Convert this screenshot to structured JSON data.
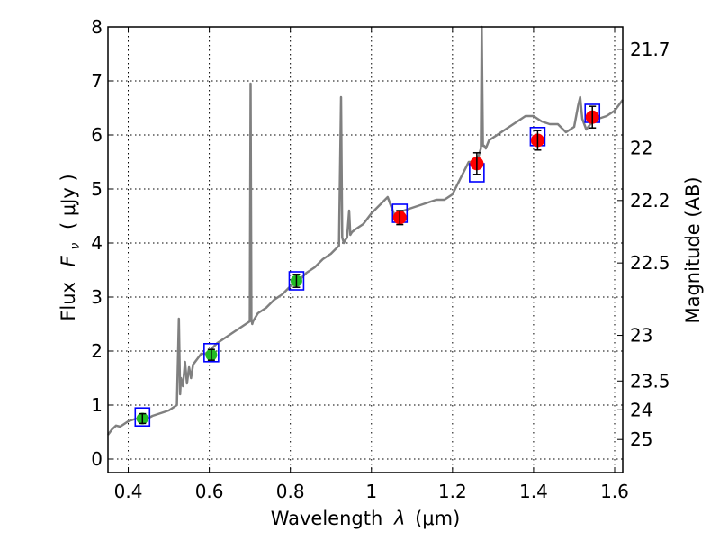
{
  "chart_data": {
    "type": "line+scatter",
    "xlabel_prefix": "Wavelength",
    "xlabel_symbol": "λ",
    "xlabel_unit": "(μm)",
    "ylabel_prefix": "Flux",
    "ylabel_symbol": "F",
    "ylabel_subscript": "ν",
    "ylabel_unit": "( μJy )",
    "y2label": "Magnitude (AB)",
    "xlim": [
      0.35,
      1.62
    ],
    "ylim": [
      -0.25,
      8.0
    ],
    "grid": true,
    "x_ticks": [
      0.4,
      0.6,
      0.8,
      1.0,
      1.2,
      1.4,
      1.6
    ],
    "x_tick_labels": [
      "0.4",
      "0.6",
      "0.8",
      "1",
      "1.2",
      "1.4",
      "1.6"
    ],
    "y_ticks": [
      0,
      1,
      2,
      3,
      4,
      5,
      6,
      7,
      8
    ],
    "y_tick_labels": [
      "0",
      "1",
      "2",
      "3",
      "4",
      "5",
      "6",
      "7",
      "8"
    ],
    "y2_ticks_mag": [
      21.7,
      22,
      22.2,
      22.5,
      23,
      23.5,
      24,
      25
    ],
    "y2_tick_labels": [
      "21.7",
      "22",
      "22.2",
      "22.5",
      "23",
      "23.5",
      "24",
      "25"
    ],
    "colors": {
      "spectrum": "#808080",
      "green_points": "#22bb22",
      "red_points": "#ff0000",
      "boxes": "#0000ff",
      "errorbars": "#000000"
    },
    "series": [
      {
        "name": "model spectrum",
        "kind": "line",
        "x": [
          0.35,
          0.36,
          0.37,
          0.38,
          0.39,
          0.4,
          0.42,
          0.44,
          0.46,
          0.48,
          0.5,
          0.52,
          0.525,
          0.528,
          0.53,
          0.535,
          0.54,
          0.545,
          0.55,
          0.555,
          0.56,
          0.57,
          0.58,
          0.59,
          0.6,
          0.62,
          0.64,
          0.66,
          0.68,
          0.7,
          0.702,
          0.704,
          0.706,
          0.708,
          0.72,
          0.74,
          0.76,
          0.78,
          0.8,
          0.82,
          0.84,
          0.86,
          0.88,
          0.9,
          0.92,
          0.925,
          0.928,
          0.932,
          0.935,
          0.94,
          0.945,
          0.948,
          0.952,
          0.96,
          0.98,
          1.0,
          1.02,
          1.04,
          1.06,
          1.08,
          1.1,
          1.12,
          1.14,
          1.16,
          1.18,
          1.2,
          1.22,
          1.24,
          1.26,
          1.27,
          1.272,
          1.275,
          1.278,
          1.282,
          1.29,
          1.3,
          1.32,
          1.34,
          1.36,
          1.38,
          1.4,
          1.42,
          1.44,
          1.46,
          1.48,
          1.5,
          1.51,
          1.515,
          1.52,
          1.53,
          1.54,
          1.56,
          1.58,
          1.6,
          1.62
        ],
        "y": [
          0.45,
          0.55,
          0.62,
          0.6,
          0.65,
          0.7,
          0.75,
          0.72,
          0.8,
          0.85,
          0.9,
          1.0,
          2.6,
          1.2,
          1.5,
          1.35,
          1.8,
          1.4,
          1.7,
          1.5,
          1.75,
          1.85,
          1.95,
          1.95,
          2.0,
          2.15,
          2.25,
          2.35,
          2.45,
          2.55,
          6.95,
          2.6,
          2.5,
          2.55,
          2.7,
          2.8,
          2.95,
          3.05,
          3.2,
          3.3,
          3.45,
          3.55,
          3.7,
          3.8,
          3.95,
          6.7,
          4.1,
          4.0,
          4.05,
          4.1,
          4.6,
          4.15,
          4.2,
          4.25,
          4.35,
          4.55,
          4.7,
          4.85,
          4.45,
          4.6,
          4.65,
          4.7,
          4.75,
          4.8,
          4.8,
          4.9,
          5.2,
          5.5,
          5.5,
          5.75,
          8.0,
          5.8,
          5.8,
          5.75,
          5.9,
          5.95,
          6.05,
          6.15,
          6.25,
          6.35,
          6.35,
          6.25,
          6.2,
          6.2,
          6.05,
          6.15,
          6.55,
          6.7,
          6.3,
          6.1,
          6.2,
          6.3,
          6.35,
          6.45,
          6.65
        ]
      },
      {
        "name": "green photometry",
        "kind": "points",
        "x": [
          0.435,
          0.605,
          0.815
        ],
        "y": [
          0.75,
          1.93,
          3.3
        ],
        "err": [
          0.09,
          0.1,
          0.12
        ],
        "box": [
          0.78,
          1.97,
          3.3
        ]
      },
      {
        "name": "red photometry",
        "kind": "points",
        "x": [
          1.07,
          1.26,
          1.41,
          1.545
        ],
        "y": [
          4.47,
          5.47,
          5.9,
          6.33
        ],
        "err": [
          0.13,
          0.2,
          0.18,
          0.2
        ],
        "box": [
          4.55,
          5.3,
          5.97,
          6.4
        ]
      }
    ]
  }
}
